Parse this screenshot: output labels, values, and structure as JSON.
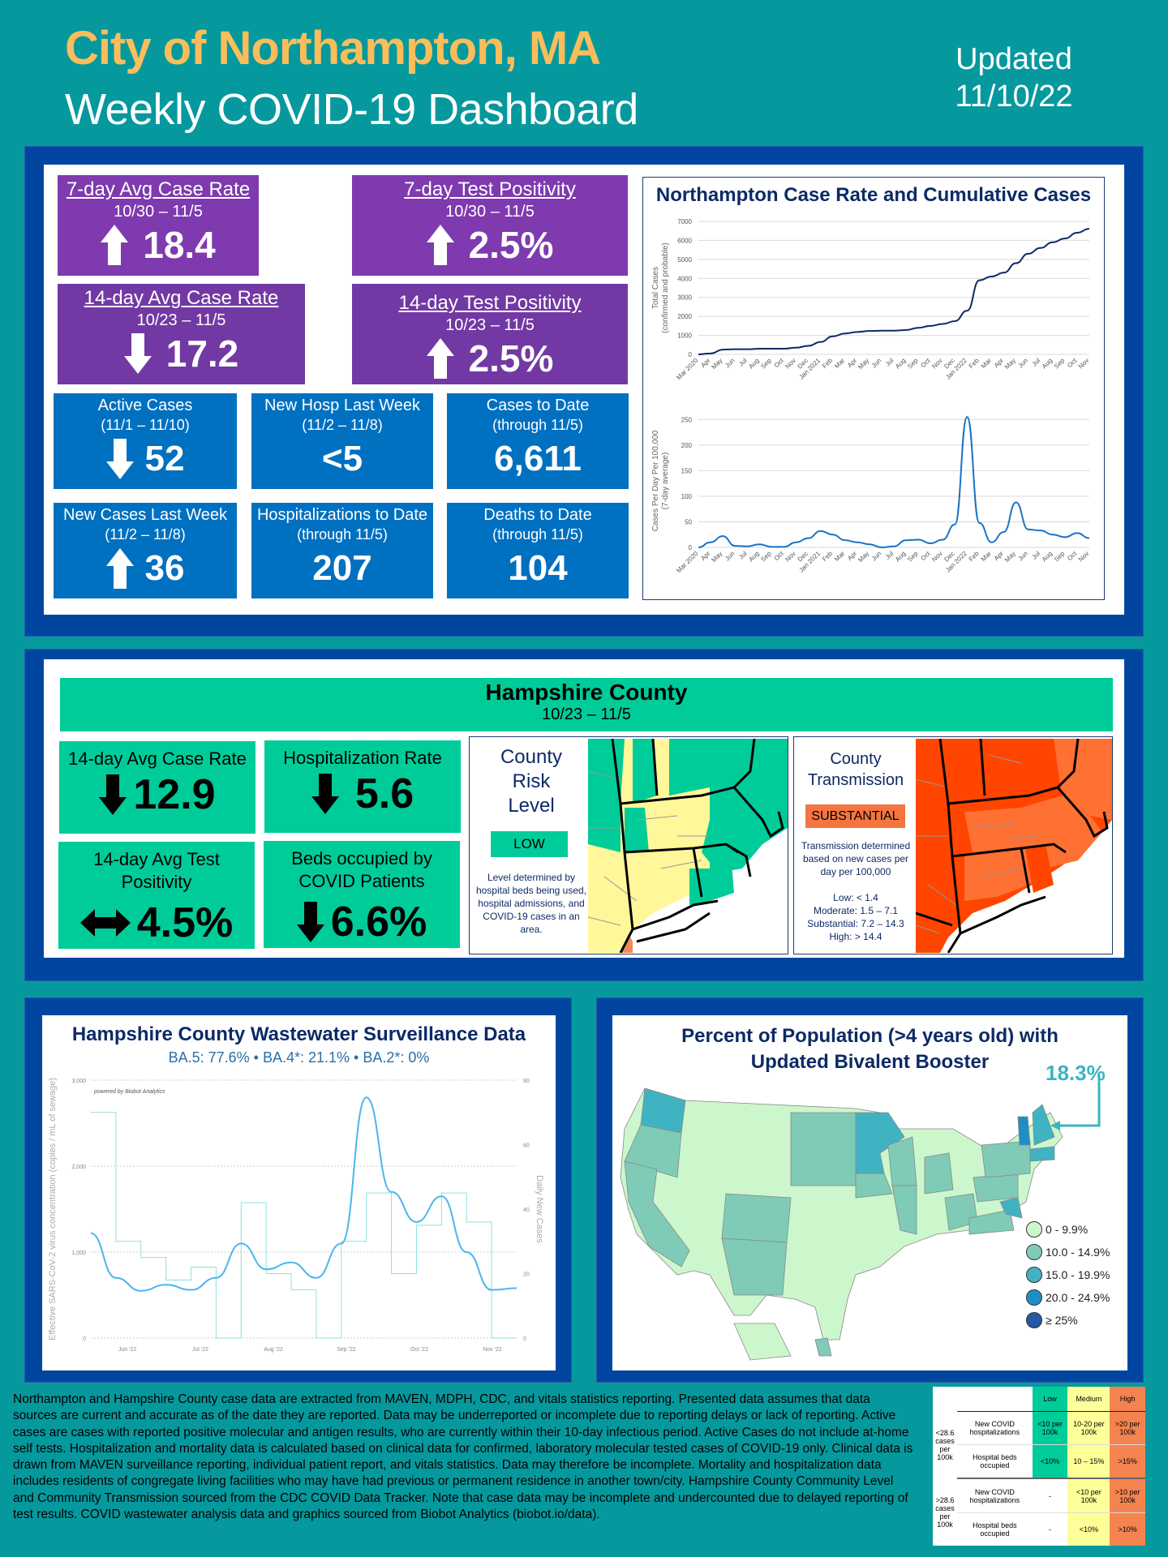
{
  "header": {
    "city": "City of Northampton, MA",
    "subtitle": "Weekly COVID-19 Dashboard",
    "updated_label": "Updated",
    "updated_date": "11/10/22"
  },
  "colors": {
    "background": "#05999e",
    "panel_blue": "#0046a0",
    "purple": "#7e3aae",
    "tile_blue": "#0070c0",
    "county_green": "#00cc99",
    "title_gold": "#fbbd5a",
    "substantial_orange": "#f4753f"
  },
  "northampton": {
    "purple_tiles": [
      {
        "title": "7-day Avg Case Rate",
        "period": "10/30 – 11/5",
        "trend": "up",
        "value": "18.4"
      },
      {
        "title": "7-day Test Positivity",
        "period": "10/30 – 11/5",
        "trend": "up",
        "value": "2.5%"
      },
      {
        "title": "14-day Avg Case Rate",
        "period": "10/23 – 11/5",
        "trend": "down",
        "value": "17.2"
      },
      {
        "title": "14-day Test Positivity",
        "period": "10/23 – 11/5",
        "trend": "up",
        "value": "2.5%"
      }
    ],
    "blue_tiles": [
      {
        "title": "Active Cases",
        "period": "(11/1 – 11/10)",
        "trend": "down",
        "value": "52"
      },
      {
        "title": "New Hosp Last Week",
        "period": "(11/2 – 11/8)",
        "trend": "none",
        "value": "<5"
      },
      {
        "title": "Cases to Date",
        "period": "(through 11/5)",
        "trend": "none",
        "value": "6,611"
      },
      {
        "title": "New Cases Last Week",
        "period": "(11/2 – 11/8)",
        "trend": "up",
        "value": "36"
      },
      {
        "title": "Hospitalizations to Date",
        "period": "(through 11/5)",
        "trend": "none",
        "value": "207"
      },
      {
        "title": "Deaths to Date",
        "period": "(through 11/5)",
        "trend": "none",
        "value": "104"
      }
    ]
  },
  "hampshire": {
    "title": "Hampshire County",
    "period": "10/23 – 11/5",
    "tiles": [
      {
        "title": "14-day Avg Case Rate",
        "trend": "down",
        "value": "12.9"
      },
      {
        "title": "Hospitalization Rate",
        "trend": "down",
        "value": "5.6"
      },
      {
        "title": "14-day Avg Test Positivity",
        "trend": "flat",
        "value": "4.5%"
      },
      {
        "title": "Beds occupied by COVID Patients",
        "trend": "down",
        "value": "6.6%"
      }
    ],
    "risk": {
      "title_lines": [
        "County",
        "Risk",
        "Level"
      ],
      "level": "LOW",
      "note": "Level determined by hospital beds being used, hospital admissions, and COVID-19 cases in an area."
    },
    "transmission": {
      "title_lines": [
        "County",
        "Transmission"
      ],
      "level": "SUBSTANTIAL",
      "note": "Transmission determined based on new cases per day per 100,000",
      "thresholds": [
        "Low: < 1.4",
        "Moderate: 1.5 – 7.1",
        "Substantial: 7.2 – 14.3",
        "High: > 14.4"
      ]
    }
  },
  "booster": {
    "title": "Percent of Population (>4 years old) with Updated Bivalent Booster",
    "ma_value": "18.3%",
    "legend": [
      {
        "label": "0 - 9.9%",
        "color": "#ccf7cc"
      },
      {
        "label": "10.0 - 14.9%",
        "color": "#7fcbb8"
      },
      {
        "label": "15.0 - 19.9%",
        "color": "#3fb3c2"
      },
      {
        "label": "20.0 - 24.9%",
        "color": "#1e8fc4"
      },
      {
        "label": "≥ 25%",
        "color": "#2359a6"
      }
    ]
  },
  "cdc_table": {
    "headers": [
      "",
      "",
      "Low",
      "Medium",
      "High"
    ],
    "groups": [
      {
        "label": "<28.6 cases per 100k",
        "rows": [
          {
            "metric": "New COVID hospitalizations",
            "low": "<10 per 100k",
            "medium": "10-20 per 100k",
            "high": ">20 per 100k"
          },
          {
            "metric": "Hospital beds occupied",
            "low": "<10%",
            "medium": "10 – 15%",
            "high": ">15%"
          }
        ]
      },
      {
        "label": ">28.6 cases per 100k",
        "rows": [
          {
            "metric": "New COVID hospitalizations",
            "low": "-",
            "medium": "<10 per 100k",
            "high": ">10 per 100k"
          },
          {
            "metric": "Hospital beds occupied",
            "low": "-",
            "medium": "<10%",
            "high": ">10%"
          }
        ]
      }
    ]
  },
  "footnote": "Northampton and Hampshire County case data are extracted from MAVEN, MDPH, CDC, and vitals statistics reporting. Presented data assumes that data sources are current and accurate as of the date they are reported. Data may be underreported or incomplete due to reporting delays or lack of reporting. Active cases are cases with reported positive molecular and antigen results, who are currently within their 10-day infectious period. Active Cases do not include at-home self tests. Hospitalization and mortality data is calculated based on clinical data for confirmed, laboratory molecular tested cases of COVID-19 only. Clinical data is drawn from MAVEN surveillance reporting, individual patient report, and vitals statistics. Data may therefore be incomplete. Mortality and hospitalization data includes residents of congregate living facilities who may have had previous or permanent residence in another town/city. Hampshire County Community Level and Community Transmission sourced from the CDC COVID Data Tracker. Note that case data may be incomplete and undercounted due to delayed reporting of test results. COVID wastewater analysis data and graphics sourced from Biobot Analytics (biobot.io/data).",
  "chart_data": [
    {
      "type": "line",
      "title": "Northampton Case Rate and Cumulative Cases",
      "ylabel": "Total Cases (confirmed and probable)",
      "xlabel": "",
      "ylim": [
        0,
        7000
      ],
      "yticks": [
        0,
        1000,
        2000,
        3000,
        4000,
        5000,
        6000,
        7000
      ],
      "grid": true,
      "x": [
        "Mar 2020",
        "Apr",
        "May",
        "Jun",
        "Jul",
        "Aug",
        "Sep",
        "Oct",
        "Nov",
        "Dec",
        "Jan 2021",
        "Feb",
        "Mar",
        "Apr",
        "May",
        "Jun",
        "Jul",
        "Aug",
        "Sep",
        "Oct",
        "Nov",
        "Dec",
        "Jan 2022",
        "Feb",
        "Mar",
        "Apr",
        "May",
        "Jun",
        "Jul",
        "Aug",
        "Sep",
        "Oct",
        "Nov"
      ],
      "series": [
        {
          "name": "Total Cases",
          "values": [
            0,
            50,
            250,
            270,
            270,
            300,
            300,
            300,
            350,
            450,
            650,
            950,
            1100,
            1180,
            1230,
            1250,
            1250,
            1280,
            1400,
            1500,
            1600,
            1750,
            2300,
            3900,
            4100,
            4300,
            4800,
            5300,
            5600,
            5900,
            6100,
            6400,
            6611
          ]
        }
      ]
    },
    {
      "type": "line",
      "title": "",
      "ylabel": "Cases Per Day Per 100,000 (7-day average)",
      "xlabel": "",
      "ylim": [
        0,
        260
      ],
      "yticks": [
        0,
        50,
        100,
        150,
        200,
        250
      ],
      "grid": true,
      "x": [
        "Mar 2020",
        "Apr",
        "May",
        "Jun",
        "Jul",
        "Aug",
        "Sep",
        "Oct",
        "Nov",
        "Dec",
        "Jan 2021",
        "Feb",
        "Mar",
        "Apr",
        "May",
        "Jun",
        "Jul",
        "Aug",
        "Sep",
        "Oct",
        "Nov",
        "Dec",
        "Jan 2022",
        "Feb",
        "Mar",
        "Apr",
        "May",
        "Jun",
        "Jul",
        "Aug",
        "Sep",
        "Oct",
        "Nov"
      ],
      "series": [
        {
          "name": "7-day avg case rate",
          "values": [
            0,
            10,
            22,
            3,
            2,
            6,
            1,
            1,
            10,
            18,
            32,
            25,
            14,
            10,
            6,
            0,
            2,
            14,
            15,
            8,
            15,
            45,
            255,
            48,
            10,
            30,
            88,
            35,
            33,
            25,
            20,
            28,
            18
          ]
        }
      ]
    },
    {
      "type": "line",
      "title": "Hampshire County Wastewater Surveillance Data",
      "subtitle": "BA.5: 77.6% • BA.4*: 21.1% • BA.2*: 0%",
      "note": "powered by Biobot Analytics",
      "ylabel": "Effective SARS-CoV-2 virus concentration (copies / mL of sewage)",
      "y2label": "Daily New Cases",
      "ylim": [
        0,
        3000
      ],
      "y2lim": [
        0,
        80
      ],
      "yticks": [
        0,
        1000,
        2000,
        3000
      ],
      "y2ticks": [
        0,
        20,
        40,
        60,
        80
      ],
      "xticks": [
        "Jun '22",
        "Jul '22",
        "Aug '22",
        "Sep '22",
        "Oct '22",
        "Nov '22"
      ],
      "grid": true,
      "x": [
        "May 20",
        "Jun 1",
        "Jun 10",
        "Jun 20",
        "Jul 1",
        "Jul 15",
        "Jul 28",
        "Aug 8",
        "Aug 20",
        "Aug 28",
        "Sep 5",
        "Sep 12",
        "Sep 20",
        "Sep 30",
        "Oct 10",
        "Oct 20",
        "Nov 1",
        "Nov 8"
      ],
      "series": [
        {
          "name": "Wastewater concentration",
          "axis": "left",
          "values": [
            1220,
            700,
            550,
            620,
            560,
            700,
            1100,
            800,
            880,
            700,
            1100,
            2800,
            1700,
            1350,
            1650,
            1000,
            560,
            580
          ]
        },
        {
          "name": "Daily new cases",
          "axis": "right",
          "values": [
            70,
            30,
            25,
            18,
            22,
            0,
            42,
            20,
            15,
            0,
            30,
            45,
            20,
            35,
            45,
            36,
            0,
            0
          ]
        }
      ]
    }
  ]
}
